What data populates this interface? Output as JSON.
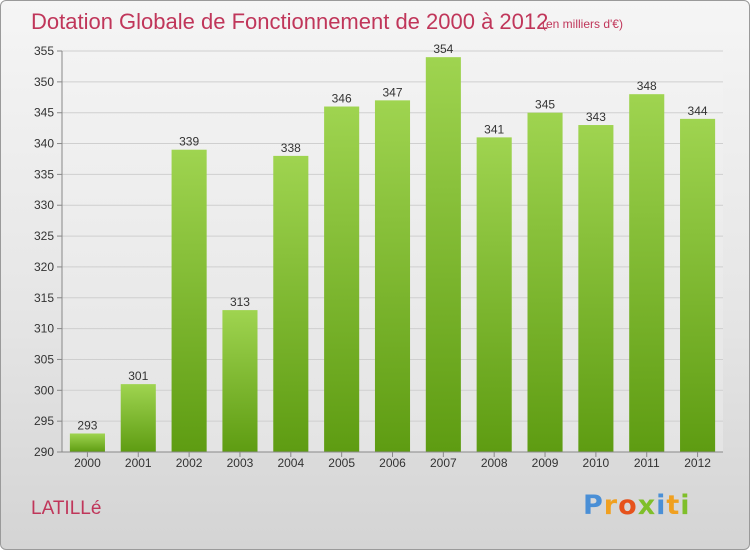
{
  "chart_data": {
    "type": "bar",
    "title": "Dotation Globale de Fonctionnement de 2000 à 2012",
    "subtitle": "(en milliers d'€)",
    "categories": [
      "2000",
      "2001",
      "2002",
      "2003",
      "2004",
      "2005",
      "2006",
      "2007",
      "2008",
      "2009",
      "2010",
      "2011",
      "2012"
    ],
    "values": [
      293,
      301,
      339,
      313,
      338,
      346,
      347,
      354,
      341,
      345,
      343,
      348,
      344
    ],
    "ylim": [
      290,
      355
    ],
    "yticks": [
      290,
      295,
      300,
      305,
      310,
      315,
      320,
      325,
      330,
      335,
      340,
      345,
      350,
      355
    ],
    "grid": true,
    "bar_color": "#7fbf2a"
  },
  "commune": "LATILLé",
  "logo": {
    "letters": [
      "P",
      "r",
      "o",
      "x",
      "i",
      "t",
      "i"
    ],
    "colors": [
      "#4a8fd6",
      "#f0a020",
      "#e6521c",
      "#7fbf2a",
      "#4a8fd6",
      "#f0a020",
      "#7fbf2a"
    ]
  }
}
